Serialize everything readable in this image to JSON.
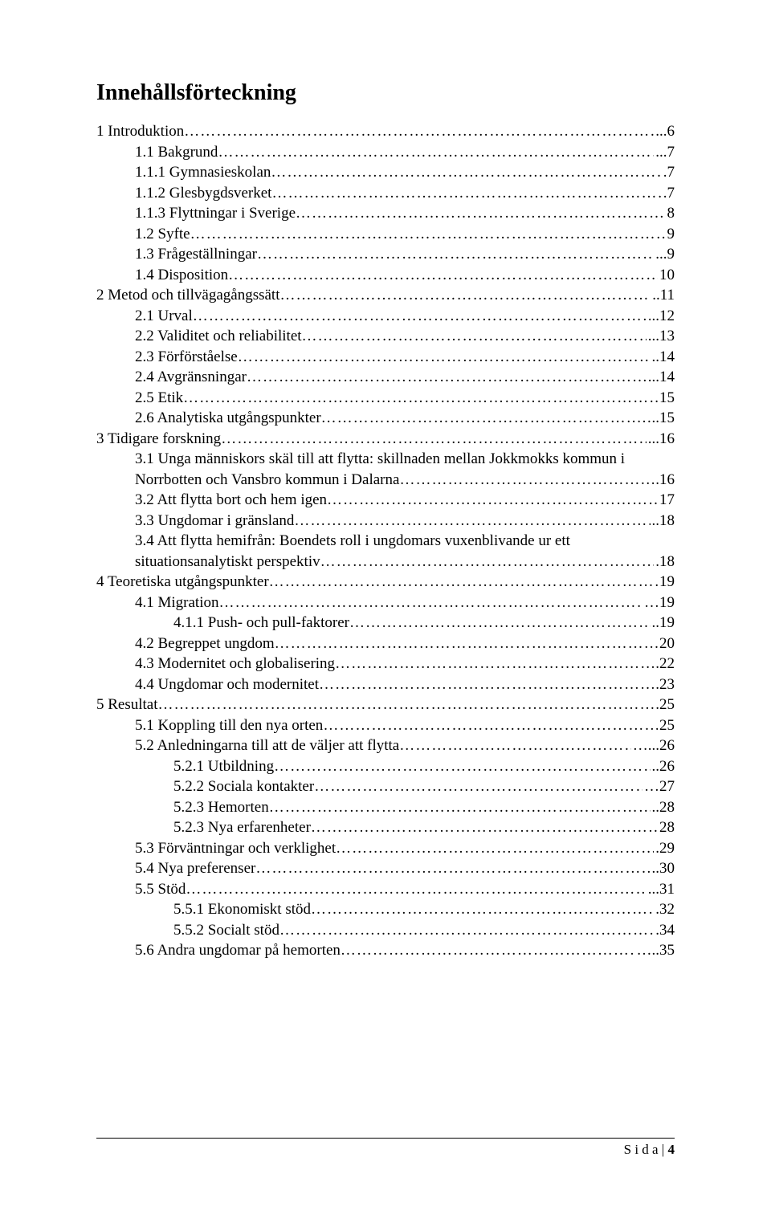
{
  "title": "Innehållsförteckning",
  "footer": {
    "label": "S i d a",
    "sep": " | ",
    "num": "4"
  },
  "toc": [
    {
      "level": 0,
      "label": "1 Introduktion",
      "page": "...6"
    },
    {
      "level": 1,
      "label": "1.1 Bakgrund",
      "page": "...7"
    },
    {
      "level": 1,
      "label": "1.1.1 Gymnasieskolan",
      "page": ".7"
    },
    {
      "level": 1,
      "label": "1.1.2 Glesbygdsverket",
      "page": ".7"
    },
    {
      "level": 1,
      "label": "1.1.3 Flyttningar i Sverige",
      "page": "8"
    },
    {
      "level": 1,
      "label": "1.2 Syfte",
      "page": "9"
    },
    {
      "level": 1,
      "label": "1.3 Frågeställningar",
      "page": "...9"
    },
    {
      "level": 1,
      "label": "1.4 Disposition",
      "page": "10"
    },
    {
      "level": 0,
      "label": "2 Metod och tillvägagångssätt",
      "page": "..11"
    },
    {
      "level": 1,
      "label": "2.1 Urval",
      "page": "..12"
    },
    {
      "level": 1,
      "label": "2.2 Validitet och reliabilitet",
      "page": "...13"
    },
    {
      "level": 1,
      "label": "2.3 Förförståelse",
      "page": "..14"
    },
    {
      "level": 1,
      "label": "2.4 Avgränsningar",
      "page": "...14"
    },
    {
      "level": 1,
      "label": "2.5 Etik",
      "page": "15"
    },
    {
      "level": 1,
      "label": "2.6 Analytiska utgångspunkter",
      "page": "…..15"
    },
    {
      "level": 0,
      "label": "3 Tidigare forskning",
      "page": "...16"
    },
    {
      "level": 1,
      "wrap": true,
      "line1": "3.1 Unga människors skäl till att flytta: skillnaden mellan Jokkmokks kommun i",
      "label": "Norrbotten och Vansbro kommun i Dalarna",
      "page": "….16"
    },
    {
      "level": 1,
      "label": "3.2 Att flytta bort och hem igen",
      "page": "17"
    },
    {
      "level": 1,
      "label": "3.3 Ungdomar i gränsland",
      "page": "..18"
    },
    {
      "level": 1,
      "wrap": true,
      "line1": "3.4 Att flytta hemifrån: Boendets roll i ungdomars vuxenblivande ur ett",
      "label": "situationsanalytiskt perspektiv",
      "page": ".18"
    },
    {
      "level": 0,
      "label": "4 Teoretiska utgångspunkter",
      "page": "19"
    },
    {
      "level": 1,
      "label": "4.1 Migration",
      "page": "…19"
    },
    {
      "level": 2,
      "label": "4.1.1 Push- och pull-faktorer",
      "page": "..19"
    },
    {
      "level": 1,
      "label": "4.2 Begreppet ungdom",
      "page": "20"
    },
    {
      "level": 1,
      "label": "4.3 Modernitet och globalisering",
      "page": ".22"
    },
    {
      "level": 1,
      "label": "4.4 Ungdomar och modernitet",
      "page": ".23"
    },
    {
      "level": 0,
      "label": "5 Resultat",
      "page": ".25"
    },
    {
      "level": 1,
      "label": "5.1 Koppling till den nya orten",
      "page": "25"
    },
    {
      "level": 1,
      "label": "5.2 Anledningarna till att de väljer att flytta",
      "page": "…...26"
    },
    {
      "level": 2,
      "label": "5.2.1 Utbildning",
      "page": "..26"
    },
    {
      "level": 2,
      "label": "5.2.2 Sociala kontakter",
      "page": "…27"
    },
    {
      "level": 2,
      "label": "5.2.3 Hemorten",
      "page": "..28"
    },
    {
      "level": 2,
      "label": "5.2.3 Nya erfarenheter",
      "page": "28"
    },
    {
      "level": 1,
      "label": "5.3 Förväntningar och verklighet",
      "page": ".29"
    },
    {
      "level": 1,
      "label": "5.4 Nya preferenser",
      "page": "..30"
    },
    {
      "level": 1,
      "label": "5.5 Stöd",
      "page": "...31"
    },
    {
      "level": 2,
      "label": "5.5.1 Ekonomiskt stöd",
      "page": ".32"
    },
    {
      "level": 2,
      "label": "5.5.2 Socialt stöd",
      "page": ".34"
    },
    {
      "level": 1,
      "label": "5.6 Andra ungdomar på hemorten",
      "page": "…..35"
    }
  ]
}
